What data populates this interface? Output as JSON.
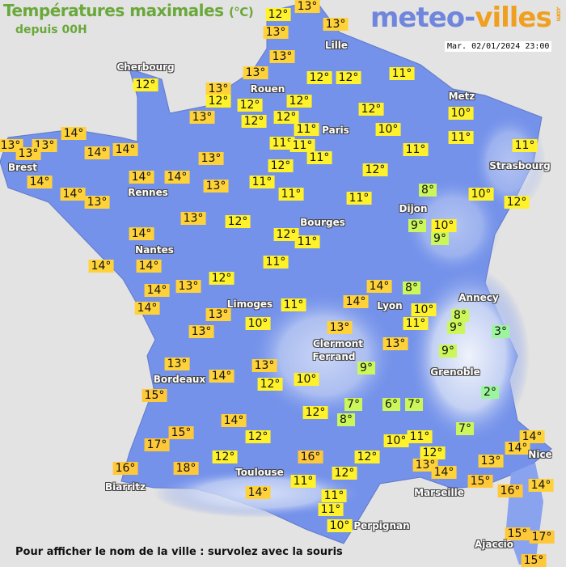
{
  "header": {
    "title": "Températures maximales",
    "unit": "(°C)",
    "subtitle": "depuis 00H",
    "logo_main": "meteo-",
    "logo_accent": "villes",
    "logo_suffix": ".com",
    "datetime": "Mar. 02/01/2024 23:00"
  },
  "legend_colors": {
    "le5": "#9cf59c",
    "6to9": "#ccf75a",
    "10to12": "#fff22a",
    "13plus": "#ffd23a",
    "15plus": "#ffc838",
    "land": "#7492ea",
    "sea": "#e3e3e3"
  },
  "temperatures": [
    12,
    13,
    13,
    13,
    13,
    13,
    12,
    13,
    12,
    12,
    12,
    11,
    13,
    12,
    12,
    12,
    12,
    11,
    12,
    10,
    10,
    11,
    11,
    13,
    13,
    13,
    14,
    14,
    14,
    14,
    14,
    13,
    14,
    14,
    13,
    13,
    11,
    11,
    11,
    11,
    12,
    11,
    12,
    11,
    11,
    8,
    10,
    12,
    13,
    12,
    12,
    11,
    14,
    14,
    14,
    11,
    9,
    10,
    9,
    14,
    13,
    12,
    14,
    14,
    8,
    10,
    11,
    8,
    9,
    3,
    11,
    14,
    13,
    10,
    13,
    13,
    13,
    9,
    9,
    13,
    13,
    10,
    12,
    14,
    2,
    15,
    7,
    6,
    7,
    12,
    8,
    7,
    14,
    15,
    12,
    17,
    10,
    11,
    12,
    16,
    12,
    12,
    13,
    14,
    14,
    14,
    13,
    15,
    16,
    18,
    12,
    11,
    14,
    11,
    11,
    10,
    16,
    14,
    15,
    17,
    15
  ],
  "cities": [
    "Cherbourg",
    "Lille",
    "Rouen",
    "Paris",
    "Metz",
    "Strasbourg",
    "Brest",
    "Rennes",
    "Dijon",
    "Bourges",
    "Nantes",
    "Limoges",
    "Annecy",
    "Lyon",
    "Clermont",
    "Ferrand",
    "Grenoble",
    "Bordeaux",
    "Toulouse",
    "Biarritz",
    "Marseille",
    "Nice",
    "Perpignan",
    "Ajaccio"
  ],
  "footer": "Pour afficher le nom de la ville : survolez avec la souris"
}
